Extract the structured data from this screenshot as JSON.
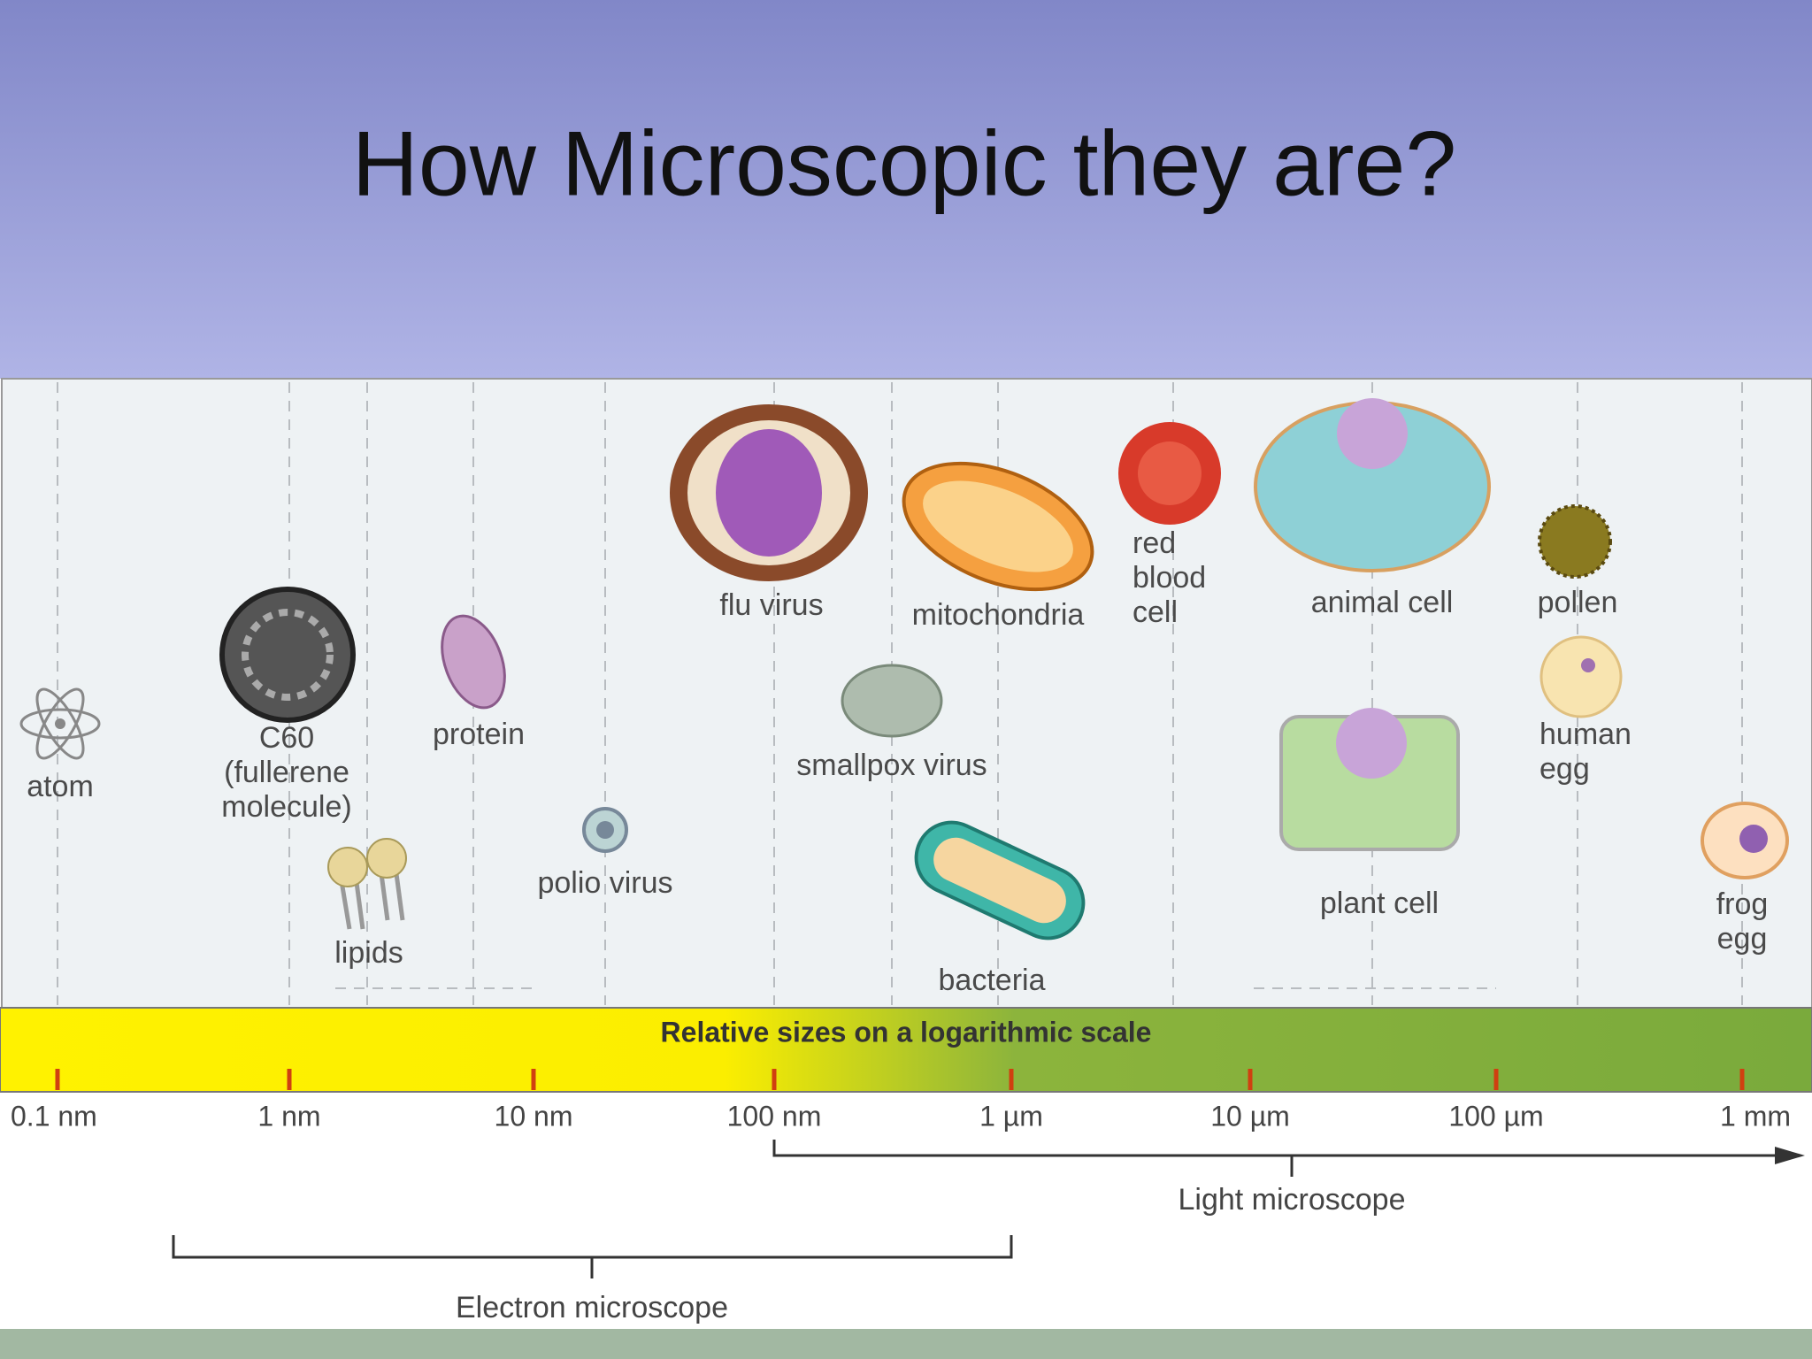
{
  "title": "How Microscopic they are?",
  "diagram": {
    "items": [
      {
        "lines": [
          "atom"
        ]
      },
      {
        "lines": [
          "C60",
          "(fullerene",
          "molecule)"
        ]
      },
      {
        "lines": [
          "protein"
        ]
      },
      {
        "lines": [
          "lipids"
        ]
      },
      {
        "lines": [
          "polio virus"
        ]
      },
      {
        "lines": [
          "flu virus"
        ]
      },
      {
        "lines": [
          "smallpox virus"
        ]
      },
      {
        "lines": [
          "mitochondria"
        ]
      },
      {
        "lines": [
          "bacteria"
        ]
      },
      {
        "lines": [
          "red",
          "blood",
          "cell"
        ]
      },
      {
        "lines": [
          "animal cell"
        ]
      },
      {
        "lines": [
          "plant cell"
        ]
      },
      {
        "lines": [
          "pollen"
        ]
      },
      {
        "lines": [
          "human",
          "egg"
        ]
      },
      {
        "lines": [
          "frog",
          "egg"
        ]
      }
    ],
    "scale_label": "Relative sizes on a logarithmic scale",
    "scale_ticks": [
      "0.1 nm",
      "1 nm",
      "10 nm",
      "100 nm",
      "1 µm",
      "10 µm",
      "100 µm",
      "1 mm"
    ],
    "light_microscope": "Light microscope",
    "electron_microscope": "Electron microscope"
  }
}
